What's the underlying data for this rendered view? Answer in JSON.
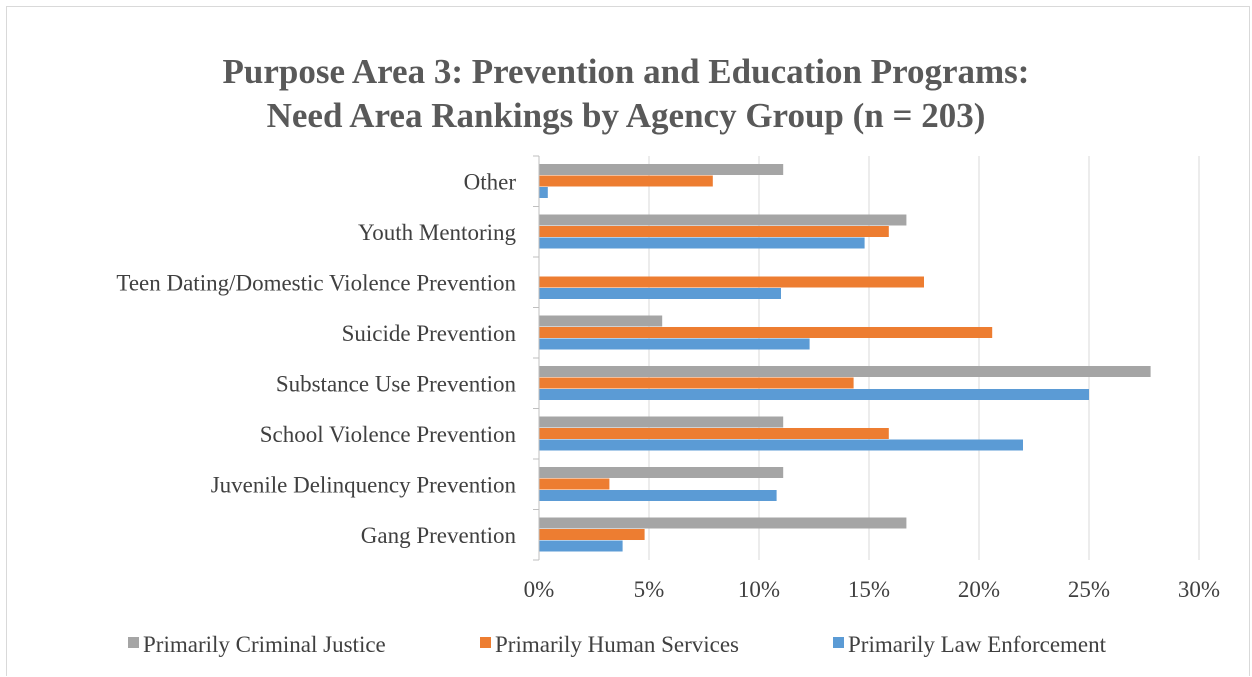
{
  "chart_data": {
    "type": "bar",
    "orientation": "horizontal",
    "title": [
      "Purpose Area 3: Prevention and Education Programs:",
      "Need Area Rankings by Agency Group (n = 203)"
    ],
    "categories": [
      "Other",
      "Youth Mentoring",
      "Teen Dating/Domestic Violence Prevention",
      "Suicide Prevention",
      "Substance Use Prevention",
      "School Violence Prevention",
      "Juvenile Delinquency Prevention",
      "Gang Prevention"
    ],
    "series": [
      {
        "name": "Primarily Criminal Justice",
        "color": "#a5a5a5",
        "values": [
          11.1,
          16.7,
          0,
          5.6,
          27.8,
          11.1,
          11.1,
          16.7
        ]
      },
      {
        "name": "Primarily Human Services",
        "color": "#ed7d31",
        "values": [
          7.9,
          15.9,
          17.5,
          20.6,
          14.3,
          15.9,
          3.2,
          4.8
        ]
      },
      {
        "name": "Primarily Law Enforcement",
        "color": "#5b9bd5",
        "values": [
          0.4,
          14.8,
          11.0,
          12.3,
          25.0,
          22.0,
          10.8,
          3.8
        ]
      }
    ],
    "xlim": [
      0,
      30
    ],
    "xticks": [
      0,
      5,
      10,
      15,
      20,
      25,
      30
    ],
    "xtick_labels": [
      "0%",
      "5%",
      "10%",
      "15%",
      "20%",
      "25%",
      "30%"
    ],
    "grid": "vertical",
    "legend": "bottom"
  }
}
